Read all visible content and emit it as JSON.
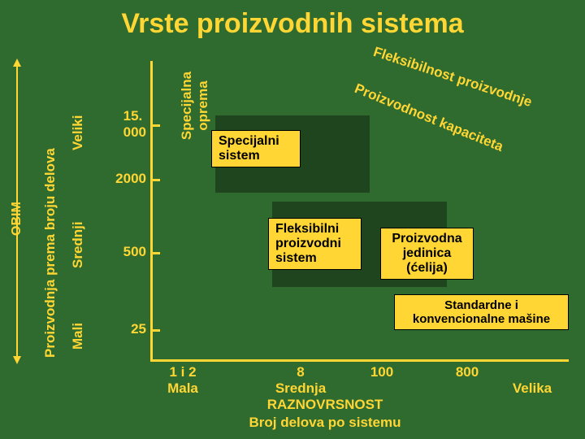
{
  "colors": {
    "bg": "#2f6b2f",
    "fg": "#ffd633",
    "box_bg": "#ffd633",
    "box_fg": "#000000",
    "axis": "#ffd633",
    "shadow": "rgba(0,0,0,0.35)"
  },
  "title": "Vrste proizvodnih sistema",
  "obim_label": "OBIM",
  "y_axis": {
    "label": "Proizvodnja prema broju delova",
    "cats": [
      "Veliki",
      "Srednji",
      "Mali"
    ],
    "ticks": [
      "15. 000",
      "2000",
      "500",
      "25"
    ]
  },
  "special_vert": {
    "line1": "Specijalna",
    "line2": "oprema"
  },
  "boxes": {
    "b1": {
      "line1": "Specijalni",
      "line2": "sistem"
    },
    "b2": {
      "line1": "Fleksibilni",
      "line2": "proizvodni",
      "line3": "sistem"
    },
    "b3": {
      "line1": "Proizvodna",
      "line2": "jedinica",
      "line3": "(ćelija)"
    },
    "b4": {
      "line1": "Standardne i",
      "line2": "konvencionalne mašine"
    }
  },
  "angled": {
    "a1": "Fleksibilnost proizvodnje",
    "a2": "Proizvodnost kapaciteta"
  },
  "x_axis": {
    "ticks": [
      {
        "num": "1 i 2",
        "cat": "Mala"
      },
      {
        "num": "8",
        "cat": "Srednja"
      },
      {
        "num": "100",
        "cat": ""
      },
      {
        "num": "800",
        "cat": "Velika"
      }
    ],
    "label": "RAZNOVRSNOST",
    "bottom": "Broj delova po sistemu"
  }
}
